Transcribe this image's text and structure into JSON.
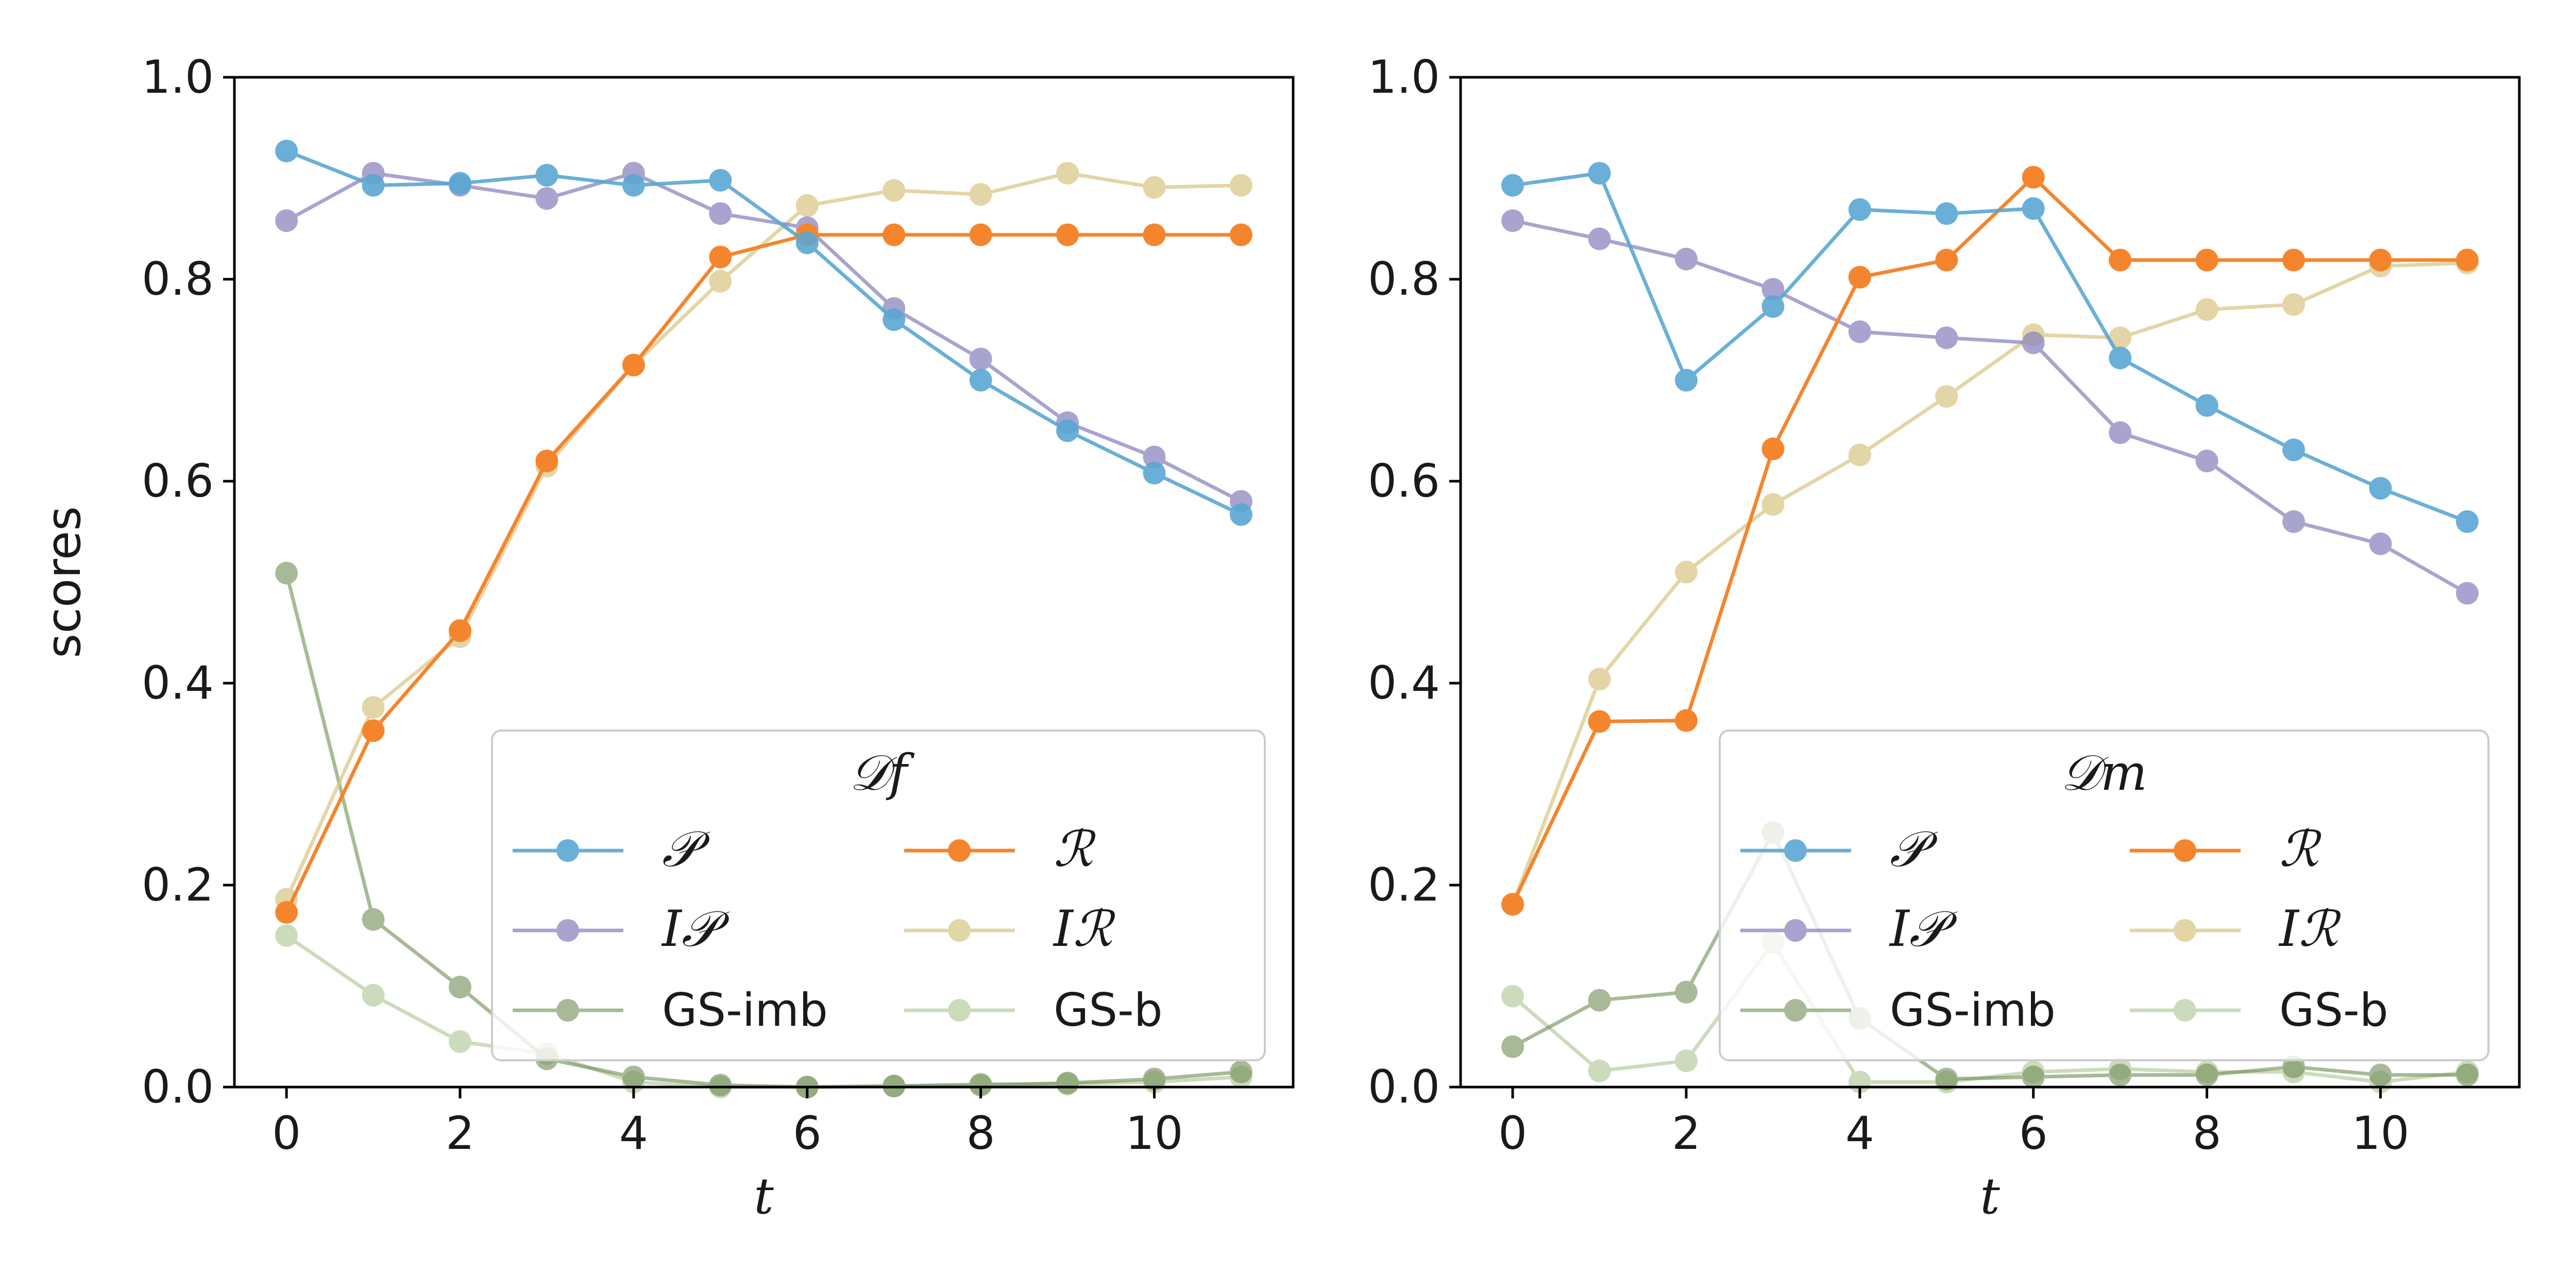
{
  "colors": {
    "P": "#5aa7d3",
    "R": "#f5852d",
    "IP": "#8c86bf",
    "IR": "#d8c47f",
    "GS-imb": "#6f8c54",
    "GS-b": "#a4be86"
  },
  "chart_data": [
    {
      "type": "line",
      "title": "",
      "xlabel": "t",
      "ylabel": "scores",
      "xlim": [
        -0.6,
        11.6
      ],
      "ylim": [
        0.0,
        1.0
      ],
      "xticks": [
        0,
        2,
        4,
        6,
        8,
        10
      ],
      "xtick_labels": [
        "0",
        "2",
        "4",
        "6",
        "8",
        "10"
      ],
      "yticks": [
        0.0,
        0.2,
        0.4,
        0.6,
        0.8,
        1.0
      ],
      "ytick_labels": [
        "0.0",
        "0.2",
        "0.4",
        "0.6",
        "0.8",
        "1.0"
      ],
      "legend": {
        "title": "𝒟f",
        "placement": "lower-right",
        "columns": 2
      },
      "x": [
        0,
        1,
        2,
        3,
        4,
        5,
        6,
        7,
        8,
        9,
        10,
        11
      ],
      "series": [
        {
          "key": "P",
          "name": "𝒫",
          "values": [
            0.927,
            0.893,
            0.895,
            0.903,
            0.893,
            0.898,
            0.836,
            0.76,
            0.7,
            0.65,
            0.608,
            0.567
          ]
        },
        {
          "key": "IP",
          "name": "I𝒫",
          "values": [
            0.858,
            0.905,
            0.893,
            0.88,
            0.905,
            0.865,
            0.851,
            0.771,
            0.721,
            0.658,
            0.624,
            0.58
          ]
        },
        {
          "key": "GS-imb",
          "name": "GS-imb",
          "values": [
            0.509,
            0.166,
            0.099,
            0.028,
            0.01,
            0.002,
            0.0,
            0.001,
            0.002,
            0.004,
            0.008,
            0.015
          ]
        },
        {
          "key": "R",
          "name": "ℛ",
          "values": [
            0.173,
            0.353,
            0.452,
            0.62,
            0.715,
            0.822,
            0.844,
            0.844,
            0.844,
            0.844,
            0.844,
            0.844
          ]
        },
        {
          "key": "IR",
          "name": "Iℛ",
          "values": [
            0.186,
            0.376,
            0.446,
            0.615,
            0.715,
            0.798,
            0.873,
            0.888,
            0.884,
            0.905,
            0.891,
            0.893
          ]
        },
        {
          "key": "GS-b",
          "name": "GS-b",
          "values": [
            0.15,
            0.091,
            0.045,
            0.033,
            0.005,
            0.0,
            0.0,
            0.001,
            0.003,
            0.003,
            0.005,
            0.01
          ]
        }
      ]
    },
    {
      "type": "line",
      "title": "",
      "xlabel": "t",
      "ylabel": "",
      "xlim": [
        -0.6,
        11.6
      ],
      "ylim": [
        0.0,
        1.0
      ],
      "xticks": [
        0,
        2,
        4,
        6,
        8,
        10
      ],
      "xtick_labels": [
        "0",
        "2",
        "4",
        "6",
        "8",
        "10"
      ],
      "yticks": [
        0.0,
        0.2,
        0.4,
        0.6,
        0.8,
        1.0
      ],
      "ytick_labels": [
        "0.0",
        "0.2",
        "0.4",
        "0.6",
        "0.8",
        "1.0"
      ],
      "legend": {
        "title": "𝒟m",
        "placement": "lower-right",
        "columns": 2
      },
      "x": [
        0,
        1,
        2,
        3,
        4,
        5,
        6,
        7,
        8,
        9,
        10,
        11
      ],
      "series": [
        {
          "key": "P",
          "name": "𝒫",
          "values": [
            0.893,
            0.905,
            0.7,
            0.773,
            0.869,
            0.865,
            0.87,
            0.722,
            0.675,
            0.631,
            0.593,
            0.56
          ]
        },
        {
          "key": "IP",
          "name": "I𝒫",
          "values": [
            0.858,
            0.84,
            0.82,
            0.79,
            0.748,
            0.742,
            0.737,
            0.648,
            0.62,
            0.56,
            0.538,
            0.489
          ]
        },
        {
          "key": "GS-imb",
          "name": "GS-imb",
          "values": [
            0.04,
            0.086,
            0.094,
            0.252,
            0.068,
            0.008,
            0.01,
            0.012,
            0.012,
            0.02,
            0.012,
            0.012
          ]
        },
        {
          "key": "R",
          "name": "ℛ",
          "values": [
            0.181,
            0.362,
            0.363,
            0.632,
            0.802,
            0.819,
            0.901,
            0.819,
            0.819,
            0.819,
            0.819,
            0.819
          ]
        },
        {
          "key": "IR",
          "name": "Iℛ",
          "values": [
            0.181,
            0.404,
            0.51,
            0.577,
            0.626,
            0.684,
            0.745,
            0.742,
            0.77,
            0.775,
            0.813,
            0.816
          ]
        },
        {
          "key": "GS-b",
          "name": "GS-b",
          "values": [
            0.09,
            0.016,
            0.026,
            0.143,
            0.005,
            0.005,
            0.015,
            0.018,
            0.015,
            0.015,
            0.005,
            0.015
          ]
        }
      ]
    }
  ]
}
